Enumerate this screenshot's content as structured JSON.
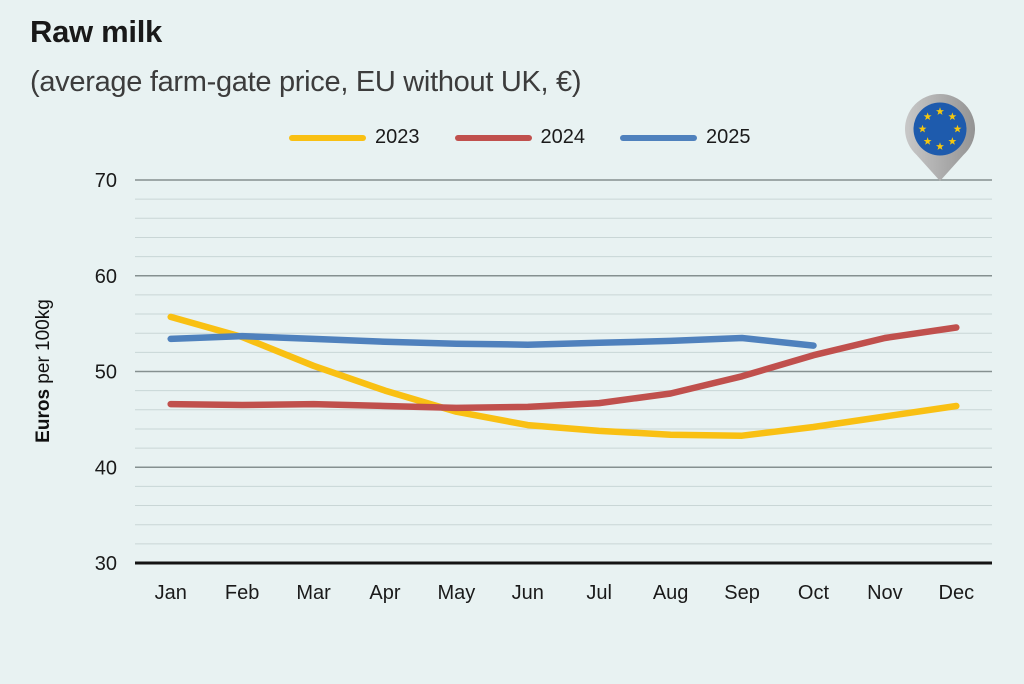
{
  "header": {
    "title": "Raw milk",
    "subtitle": "(average farm-gate price, EU without UK, €)"
  },
  "y_axis": {
    "label_bold": "Euros",
    "label_rest": " per 100kg"
  },
  "logo": {
    "description": "eu-flag-in-gray-map-pin",
    "flag_blue": "#1E5BAD",
    "star_yellow": "#F5C70E",
    "star_count": 8,
    "pin_gray_light": "#C8C8C8",
    "pin_gray_dark": "#949494"
  },
  "chart_data": {
    "type": "line",
    "title": "Raw milk (average farm-gate price, EU without UK, €)",
    "x": [
      "Jan",
      "Feb",
      "Mar",
      "Apr",
      "May",
      "Jun",
      "Jul",
      "Aug",
      "Sep",
      "Oct",
      "Nov",
      "Dec"
    ],
    "ylabel": "Euros per 100kg",
    "ylim": [
      30,
      70
    ],
    "yticks": [
      30,
      40,
      50,
      60,
      70
    ],
    "minor_grid_step": 2,
    "grid": true,
    "legend_position": "top-center",
    "colors": {
      "background": "#E8F2F2",
      "minor_grid": "#C9D6D6",
      "major_grid": "#859090",
      "baseline": "#141414",
      "text": "#1A1A1A"
    },
    "series": [
      {
        "name": "2023",
        "color": "#F9C013",
        "values": [
          55.7,
          53.6,
          50.6,
          48,
          45.8,
          44.4,
          43.8,
          43.4,
          43.3,
          44.2,
          45.3,
          46.4
        ]
      },
      {
        "name": "2024",
        "color": "#C0504D",
        "values": [
          46.6,
          46.5,
          46.6,
          46.4,
          46.2,
          46.3,
          46.7,
          47.7,
          49.5,
          51.7,
          53.5,
          54.6
        ]
      },
      {
        "name": "2025",
        "color": "#4F81BD",
        "values": [
          53.4,
          53.7,
          53.4,
          53.1,
          52.9,
          52.8,
          53,
          53.2,
          53.5,
          52.7,
          null,
          null
        ]
      }
    ]
  }
}
